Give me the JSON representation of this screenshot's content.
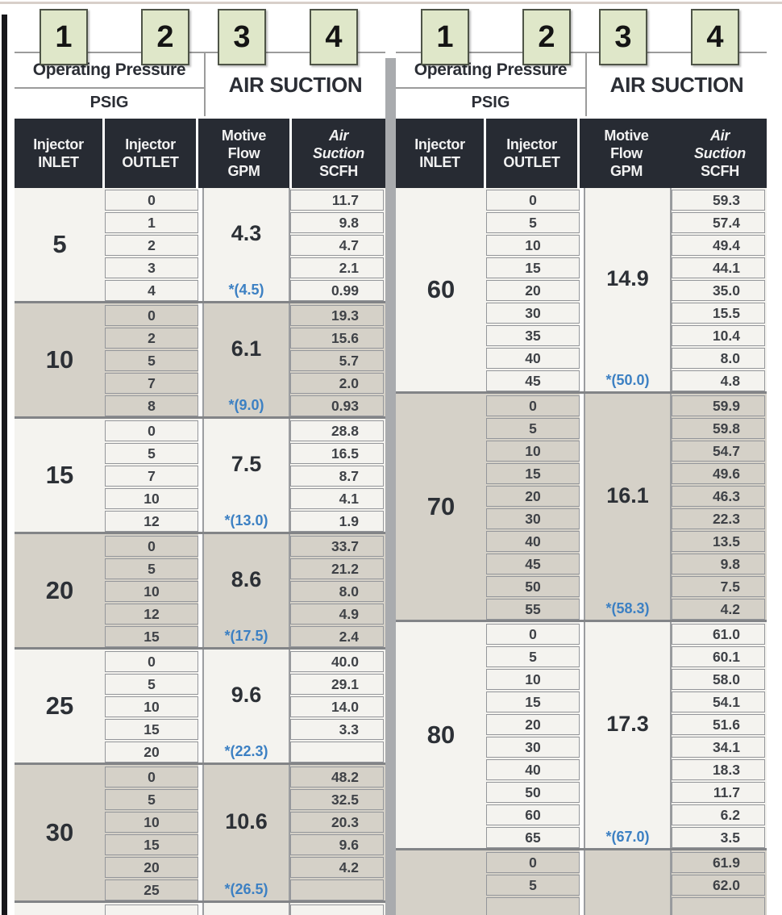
{
  "document": {
    "description_colors": {
      "marker_green": "#dfe7c9",
      "marker_border": "#4e5447",
      "header_dark": "#272b33",
      "row_light": "#f4f3ef",
      "row_dark": "#d5d1c8",
      "divider_gray": "#a9abae",
      "note_blue": "#3c80c3"
    }
  },
  "column_markers": [
    "1",
    "2",
    "3",
    "4"
  ],
  "left_table": {
    "header": {
      "pressure_title": "Operating Pressure",
      "pressure_units": "PSIG",
      "suction_title": "AIR SUCTION",
      "columns": [
        {
          "lines": [
            "Injector",
            "INLET"
          ],
          "italic": []
        },
        {
          "lines": [
            "Injector",
            "OUTLET"
          ],
          "italic": []
        },
        {
          "lines": [
            "Motive",
            "Flow",
            "GPM"
          ],
          "italic": []
        },
        {
          "lines": [
            "Air",
            "Suction",
            "SCFH"
          ],
          "italic": [
            0,
            1
          ]
        }
      ]
    },
    "groups": [
      {
        "inlet": "5",
        "motive_flow_gpm": "4.3",
        "max_outlet_note": "*(4.5)",
        "shade": "light",
        "rows": [
          {
            "outlet": "0",
            "scfh": "11.7"
          },
          {
            "outlet": "1",
            "scfh": "9.8"
          },
          {
            "outlet": "2",
            "scfh": "4.7"
          },
          {
            "outlet": "3",
            "scfh": "2.1"
          },
          {
            "outlet": "4",
            "scfh": "0.99"
          }
        ]
      },
      {
        "inlet": "10",
        "motive_flow_gpm": "6.1",
        "max_outlet_note": "*(9.0)",
        "shade": "dark",
        "rows": [
          {
            "outlet": "0",
            "scfh": "19.3"
          },
          {
            "outlet": "2",
            "scfh": "15.6"
          },
          {
            "outlet": "5",
            "scfh": "5.7"
          },
          {
            "outlet": "7",
            "scfh": "2.0"
          },
          {
            "outlet": "8",
            "scfh": "0.93"
          }
        ]
      },
      {
        "inlet": "15",
        "motive_flow_gpm": "7.5",
        "max_outlet_note": "*(13.0)",
        "shade": "light",
        "rows": [
          {
            "outlet": "0",
            "scfh": "28.8"
          },
          {
            "outlet": "5",
            "scfh": "16.5"
          },
          {
            "outlet": "7",
            "scfh": "8.7"
          },
          {
            "outlet": "10",
            "scfh": "4.1"
          },
          {
            "outlet": "12",
            "scfh": "1.9"
          }
        ]
      },
      {
        "inlet": "20",
        "motive_flow_gpm": "8.6",
        "max_outlet_note": "*(17.5)",
        "shade": "dark",
        "rows": [
          {
            "outlet": "0",
            "scfh": "33.7"
          },
          {
            "outlet": "5",
            "scfh": "21.2"
          },
          {
            "outlet": "10",
            "scfh": "8.0"
          },
          {
            "outlet": "12",
            "scfh": "4.9"
          },
          {
            "outlet": "15",
            "scfh": "2.4"
          }
        ]
      },
      {
        "inlet": "25",
        "motive_flow_gpm": "9.6",
        "max_outlet_note": "*(22.3)",
        "shade": "light",
        "rows": [
          {
            "outlet": "0",
            "scfh": "40.0"
          },
          {
            "outlet": "5",
            "scfh": "29.1"
          },
          {
            "outlet": "10",
            "scfh": "14.0"
          },
          {
            "outlet": "15",
            "scfh": "3.3"
          },
          {
            "outlet": "20",
            "scfh": ""
          }
        ]
      },
      {
        "inlet": "30",
        "motive_flow_gpm": "10.6",
        "max_outlet_note": "*(26.5)",
        "shade": "dark",
        "rows": [
          {
            "outlet": "0",
            "scfh": "48.2"
          },
          {
            "outlet": "5",
            "scfh": "32.5"
          },
          {
            "outlet": "10",
            "scfh": "20.3"
          },
          {
            "outlet": "15",
            "scfh": "9.6"
          },
          {
            "outlet": "20",
            "scfh": "4.2"
          },
          {
            "outlet": "25",
            "scfh": ""
          }
        ]
      },
      {
        "inlet": "",
        "motive_flow_gpm": "",
        "max_outlet_note": "",
        "shade": "light",
        "rows": [
          {
            "outlet": "",
            "scfh": ""
          }
        ]
      }
    ]
  },
  "right_table": {
    "header": {
      "pressure_title": "Operating Pressure",
      "pressure_units": "PSIG",
      "suction_title": "AIR SUCTION",
      "columns": [
        {
          "lines": [
            "Injector",
            "INLET"
          ],
          "italic": []
        },
        {
          "lines": [
            "Injector",
            "OUTLET"
          ],
          "italic": []
        },
        {
          "lines": [
            "Motive",
            "Flow",
            "GPM"
          ],
          "italic": []
        },
        {
          "lines": [
            "Air",
            "Suction",
            "SCFH"
          ],
          "italic": [
            0,
            1
          ]
        }
      ]
    },
    "groups": [
      {
        "inlet": "60",
        "motive_flow_gpm": "14.9",
        "max_outlet_note": "*(50.0)",
        "shade": "light",
        "rows": [
          {
            "outlet": "0",
            "scfh": "59.3"
          },
          {
            "outlet": "5",
            "scfh": "57.4"
          },
          {
            "outlet": "10",
            "scfh": "49.4"
          },
          {
            "outlet": "15",
            "scfh": "44.1"
          },
          {
            "outlet": "20",
            "scfh": "35.0"
          },
          {
            "outlet": "30",
            "scfh": "15.5"
          },
          {
            "outlet": "35",
            "scfh": "10.4"
          },
          {
            "outlet": "40",
            "scfh": "8.0"
          },
          {
            "outlet": "45",
            "scfh": "4.8"
          }
        ]
      },
      {
        "inlet": "70",
        "motive_flow_gpm": "16.1",
        "max_outlet_note": "*(58.3)",
        "shade": "dark",
        "rows": [
          {
            "outlet": "0",
            "scfh": "59.9"
          },
          {
            "outlet": "5",
            "scfh": "59.8"
          },
          {
            "outlet": "10",
            "scfh": "54.7"
          },
          {
            "outlet": "15",
            "scfh": "49.6"
          },
          {
            "outlet": "20",
            "scfh": "46.3"
          },
          {
            "outlet": "30",
            "scfh": "22.3"
          },
          {
            "outlet": "40",
            "scfh": "13.5"
          },
          {
            "outlet": "45",
            "scfh": "9.8"
          },
          {
            "outlet": "50",
            "scfh": "7.5"
          },
          {
            "outlet": "55",
            "scfh": "4.2"
          }
        ]
      },
      {
        "inlet": "80",
        "motive_flow_gpm": "17.3",
        "max_outlet_note": "*(67.0)",
        "shade": "light",
        "rows": [
          {
            "outlet": "0",
            "scfh": "61.0"
          },
          {
            "outlet": "5",
            "scfh": "60.1"
          },
          {
            "outlet": "10",
            "scfh": "58.0"
          },
          {
            "outlet": "15",
            "scfh": "54.1"
          },
          {
            "outlet": "20",
            "scfh": "51.6"
          },
          {
            "outlet": "30",
            "scfh": "34.1"
          },
          {
            "outlet": "40",
            "scfh": "18.3"
          },
          {
            "outlet": "50",
            "scfh": "11.7"
          },
          {
            "outlet": "60",
            "scfh": "6.2"
          },
          {
            "outlet": "65",
            "scfh": "3.5"
          }
        ]
      },
      {
        "inlet": "",
        "motive_flow_gpm": "",
        "max_outlet_note": "",
        "shade": "dark",
        "rows": [
          {
            "outlet": "0",
            "scfh": "61.9"
          },
          {
            "outlet": "5",
            "scfh": "62.0"
          },
          {
            "outlet": "",
            "scfh": ""
          }
        ]
      }
    ]
  }
}
